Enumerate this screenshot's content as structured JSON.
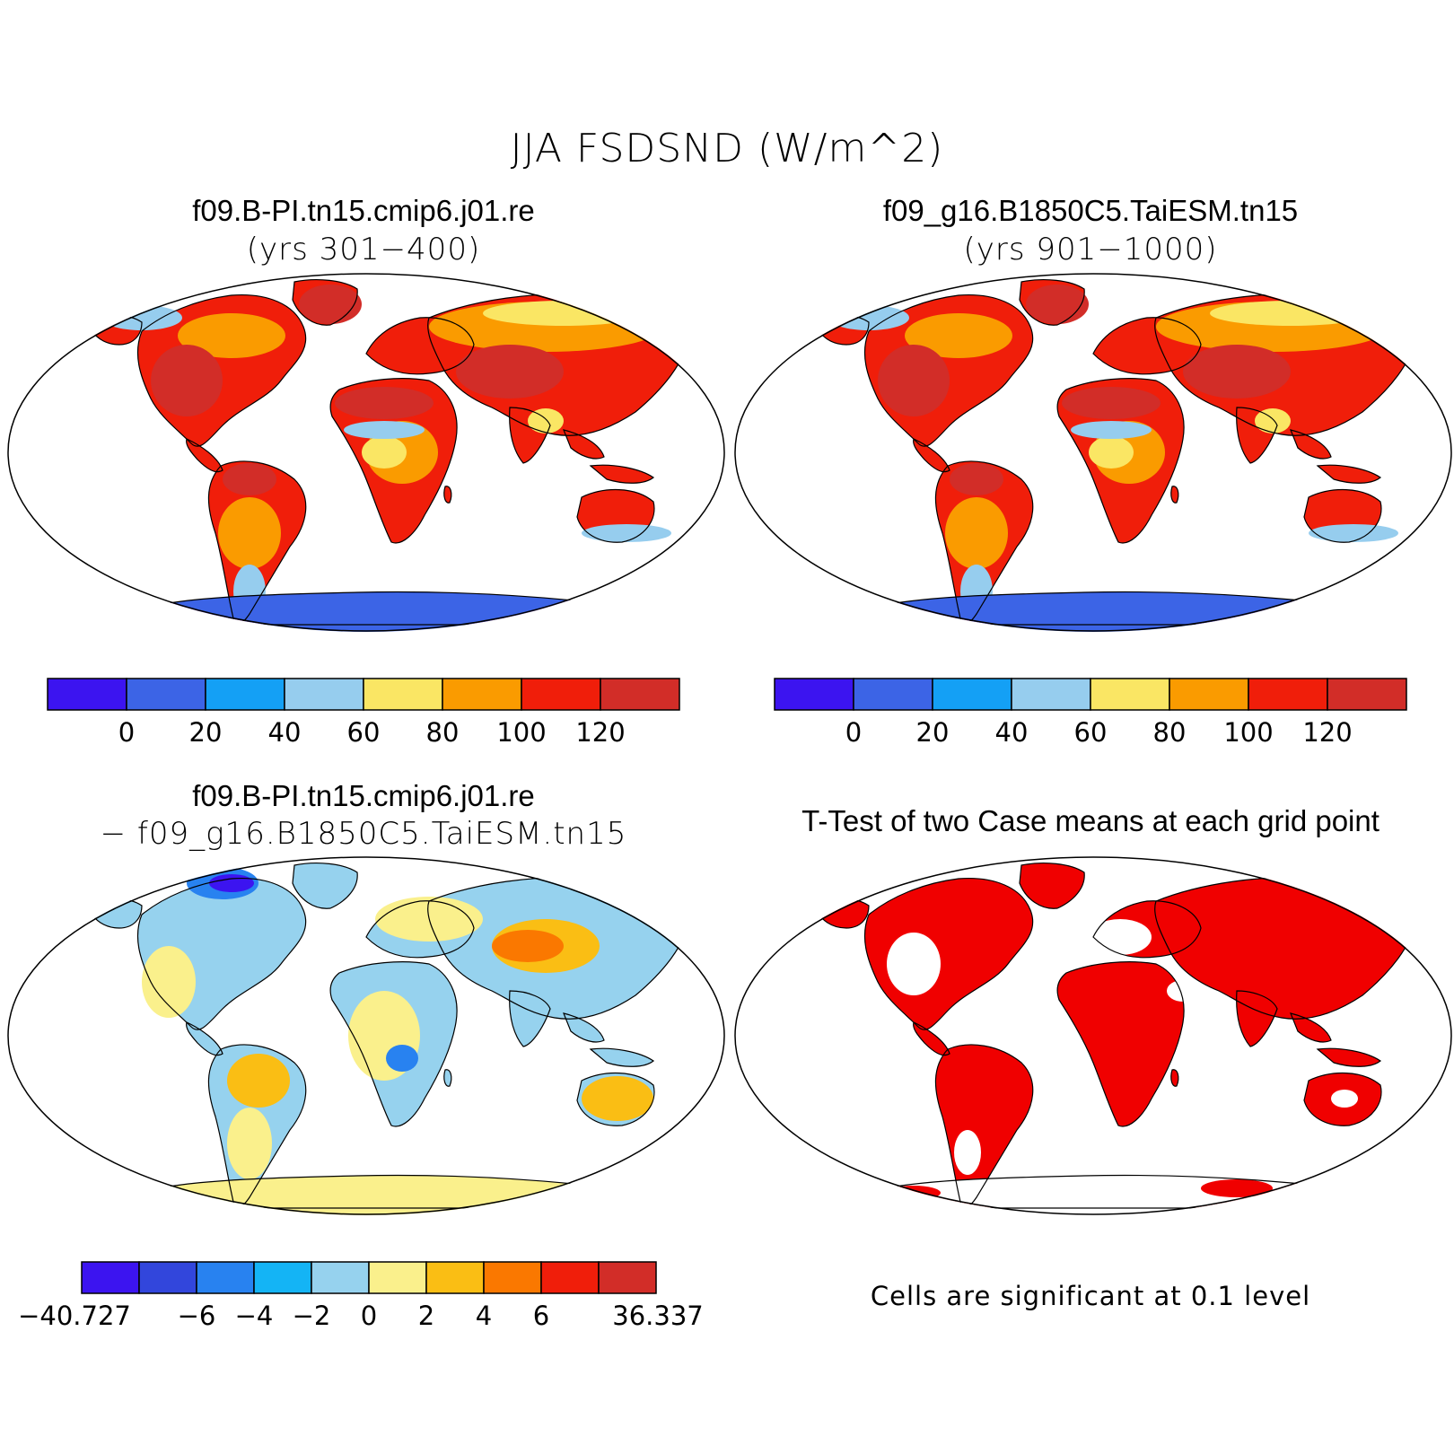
{
  "figure": {
    "title": "JJA FSDSND (W/m^2)"
  },
  "panels": {
    "case1": {
      "title": "f09.B-PI.tn15.cmip6.j01.re",
      "subtitle": "(yrs 301−400)"
    },
    "case2": {
      "title": "f09_g16.B1850C5.TaiESM.tn15",
      "subtitle": "(yrs 901−1000)"
    },
    "diff": {
      "title": "f09.B-PI.tn15.cmip6.j01.re",
      "subtitle": "− f09_g16.B1850C5.TaiESM.tn15"
    },
    "ttest": {
      "title": "T-Test of two Case means at each grid point",
      "note": "Cells are significant at 0.1 level"
    }
  },
  "colorbars": {
    "absolute": {
      "colors": [
        "#3c14f0",
        "#3c64e6",
        "#14a0f5",
        "#96cdee",
        "#fae664",
        "#fa9b00",
        "#f01e0a",
        "#d22d28"
      ],
      "labels": [
        "0",
        "20",
        "40",
        "60",
        "80",
        "100",
        "120"
      ]
    },
    "difference": {
      "colors": [
        "#3c14f0",
        "#3246dc",
        "#2882f0",
        "#14b4f5",
        "#96d2ee",
        "#faf08c",
        "#fabe14",
        "#fa7800",
        "#f01e0a",
        "#d22d28"
      ],
      "labels": [
        "−40.727",
        "−6",
        "−4",
        "−2",
        "0",
        "2",
        "4",
        "6",
        "36.337"
      ]
    }
  },
  "significance": {
    "color": "#f00000"
  }
}
